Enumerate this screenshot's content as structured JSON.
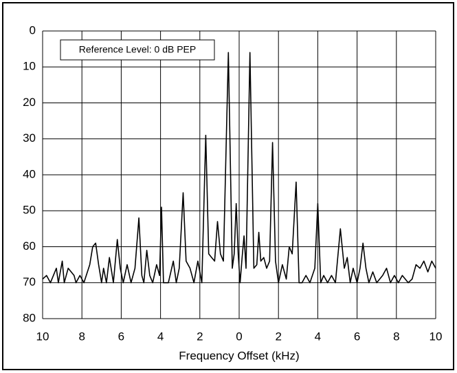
{
  "chart_data": {
    "type": "line",
    "annotation": "Reference Level: 0 dB PEP",
    "xlabel": "Frequency Offset (kHz)",
    "x": [
      -10,
      -9.8,
      -9.6,
      -9.3,
      -9.2,
      -9.0,
      -8.9,
      -8.7,
      -8.4,
      -8.3,
      -8.1,
      -7.9,
      -7.6,
      -7.45,
      -7.3,
      -7.15,
      -7.0,
      -6.9,
      -6.75,
      -6.6,
      -6.4,
      -6.2,
      -6.05,
      -5.9,
      -5.7,
      -5.5,
      -5.3,
      -5.1,
      -4.95,
      -4.85,
      -4.7,
      -4.55,
      -4.4,
      -4.2,
      -4.05,
      -3.95,
      -3.85,
      -3.6,
      -3.35,
      -3.2,
      -3.05,
      -2.85,
      -2.7,
      -2.5,
      -2.3,
      -2.1,
      -1.9,
      -1.7,
      -1.55,
      -1.4,
      -1.25,
      -1.1,
      -0.95,
      -0.8,
      -0.55,
      -0.35,
      -0.25,
      -0.15,
      -0.05,
      0.05,
      0.15,
      0.25,
      0.35,
      0.55,
      0.75,
      0.9,
      1.0,
      1.1,
      1.25,
      1.4,
      1.55,
      1.7,
      1.85,
      2.0,
      2.2,
      2.4,
      2.55,
      2.7,
      2.9,
      3.05,
      3.2,
      3.4,
      3.6,
      3.85,
      4.0,
      4.15,
      4.3,
      4.5,
      4.7,
      4.9,
      5.15,
      5.35,
      5.5,
      5.65,
      5.8,
      6.0,
      6.15,
      6.3,
      6.45,
      6.6,
      6.8,
      7.0,
      7.3,
      7.5,
      7.7,
      7.9,
      8.1,
      8.3,
      8.6,
      8.8,
      9.0,
      9.2,
      9.4,
      9.6,
      9.8,
      10
    ],
    "series": [
      {
        "color": "#000000",
        "values": [
          69,
          68,
          70,
          66,
          70,
          64,
          70,
          66,
          68,
          70,
          68,
          70,
          65,
          60,
          59,
          65,
          70,
          66,
          70,
          63,
          70,
          58,
          66,
          70,
          65,
          70,
          66,
          52,
          68,
          70,
          61,
          68,
          70,
          65,
          68,
          49,
          70,
          70,
          64,
          70,
          66,
          45,
          64,
          66,
          70,
          64,
          70,
          29,
          62,
          63,
          64,
          53,
          62,
          64,
          6,
          66,
          62,
          48,
          62,
          70,
          63,
          57,
          66,
          6,
          66,
          65,
          56,
          64,
          63,
          66,
          64,
          31,
          64,
          70,
          65,
          69,
          60,
          62,
          42,
          70,
          70,
          68,
          70,
          66,
          48,
          70,
          68,
          70,
          68,
          70,
          55,
          66,
          63,
          70,
          66,
          70,
          66,
          59,
          66,
          70,
          67,
          70,
          68,
          66,
          70,
          68,
          70,
          68,
          70,
          69,
          65,
          66,
          64,
          67,
          64,
          66
        ]
      }
    ],
    "xlim": [
      -10,
      10
    ],
    "xticks": [
      {
        "value": -10,
        "label": "10"
      },
      {
        "value": -8,
        "label": "8"
      },
      {
        "value": -6,
        "label": "6"
      },
      {
        "value": -4,
        "label": "4"
      },
      {
        "value": -2,
        "label": "2"
      },
      0,
      2,
      4,
      6,
      8,
      10
    ],
    "ylim": [
      0,
      80
    ],
    "yticks": [
      0,
      10,
      20,
      30,
      40,
      50,
      60,
      70,
      80
    ],
    "y_inverted": true,
    "grid": true
  }
}
